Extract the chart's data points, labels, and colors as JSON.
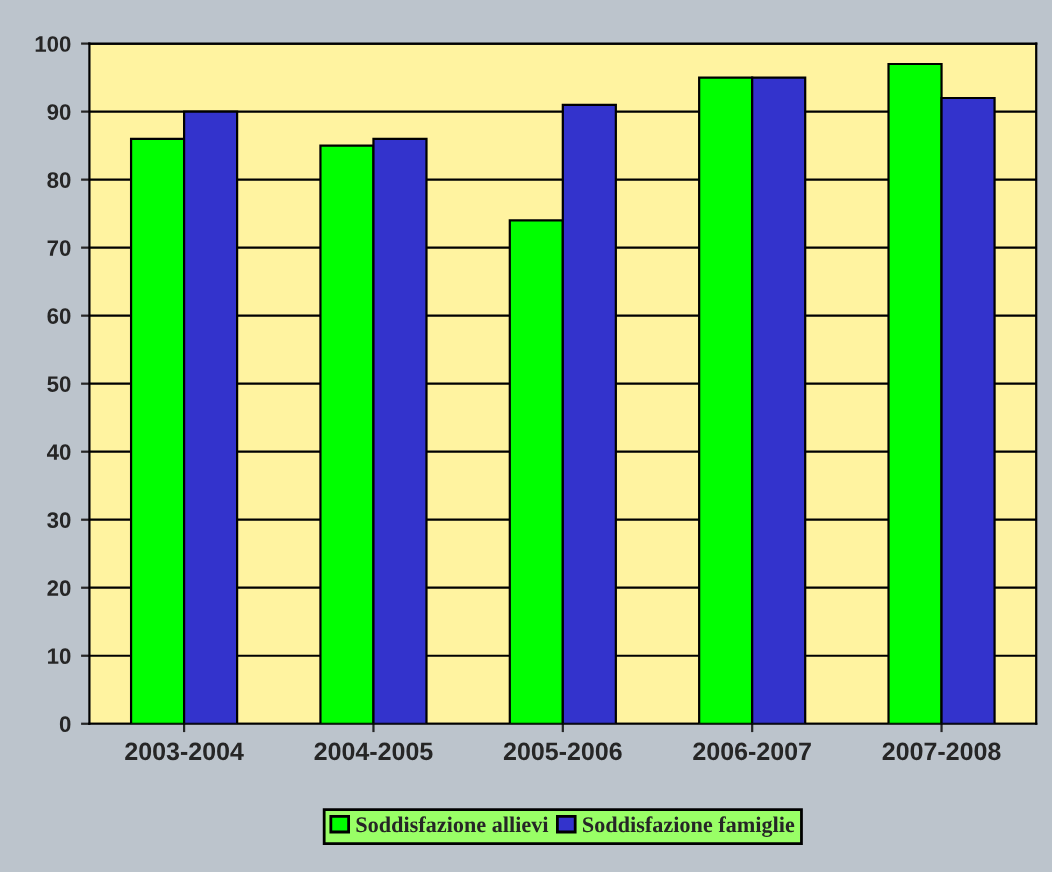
{
  "chart_data": {
    "type": "bar",
    "categories": [
      "2003-2004",
      "2004-2005",
      "2005-2006",
      "2006-2007",
      "2007-2008"
    ],
    "series": [
      {
        "name": "Soddisfazione allievi",
        "color": "#00ff00",
        "values": [
          86,
          85,
          74,
          95,
          97
        ]
      },
      {
        "name": "Soddisfazione famiglie",
        "color": "#3333cc",
        "values": [
          90,
          86,
          91,
          95,
          92
        ]
      }
    ],
    "ylim": [
      0,
      100
    ],
    "yticks": [
      0,
      10,
      20,
      30,
      40,
      50,
      60,
      70,
      80,
      90,
      100
    ],
    "grid": "y",
    "legend": "bottom"
  }
}
